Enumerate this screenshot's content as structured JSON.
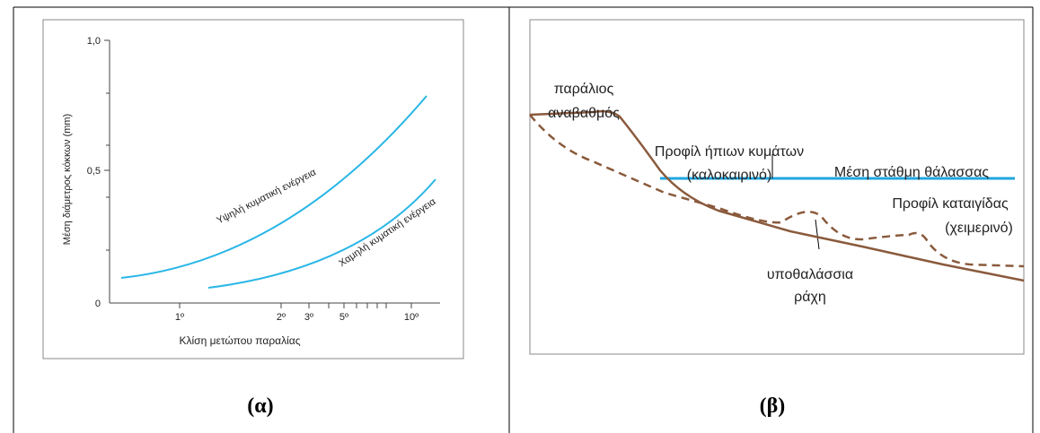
{
  "panel_a": {
    "y_axis_title": "Μέση διάμετρος κόκκων (mm)",
    "x_axis_title": "Κλίση μετώπου παραλίας",
    "y_tick_labels": [
      "1,0",
      "0,5",
      "0"
    ],
    "x_tick_labels": [
      "1º",
      "2º",
      "3º",
      "5º",
      "10º"
    ],
    "curve_labels": [
      "Υψηλή κυματική ενέργεια",
      "Χαμηλή κυματική ενέργεια"
    ],
    "caption": "(α)"
  },
  "panel_b": {
    "labels": {
      "terrace": [
        "παράλιος",
        "αναβαθμός"
      ],
      "mild_profile": [
        "Προφίλ ήπιων κυμάτων",
        "(καλοκαιρινό)"
      ],
      "sea_level": [
        "Μέση στάθμη θάλασσας"
      ],
      "storm_profile": [
        "Προφίλ καταιγίδας",
        "(χειμερινό)"
      ],
      "bar": [
        "υποθαλάσσια",
        "ράχη"
      ]
    },
    "caption": "(β)"
  }
}
